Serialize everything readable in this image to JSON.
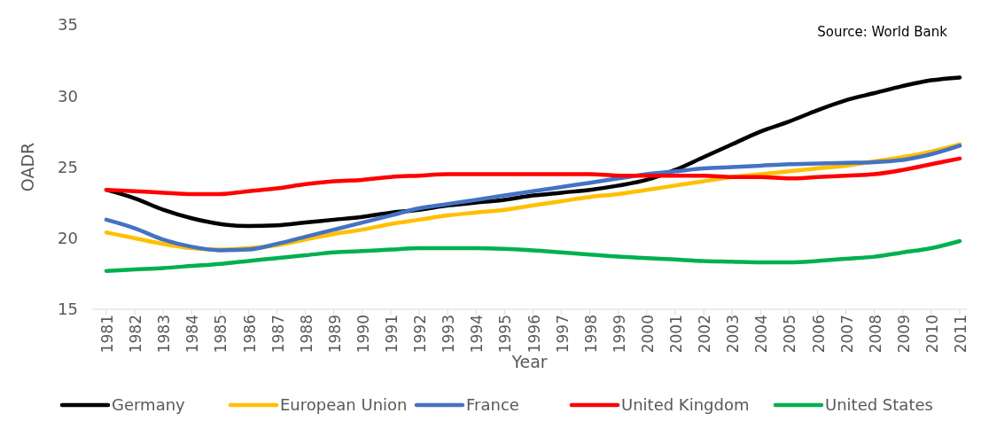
{
  "chart_data": {
    "type": "line",
    "xlabel": "Year",
    "ylabel": "OADR",
    "annotations": [
      "Source: World Bank"
    ],
    "categories": [
      "1981",
      "1982",
      "1983",
      "1984",
      "1985",
      "1986",
      "1987",
      "1988",
      "1989",
      "1990",
      "1991",
      "1992",
      "1993",
      "1994",
      "1995",
      "1996",
      "1997",
      "1998",
      "1999",
      "2000",
      "2001",
      "2002",
      "2003",
      "2004",
      "2005",
      "2006",
      "2007",
      "2008",
      "2009",
      "2010",
      "2011"
    ],
    "ylim": [
      15,
      35
    ],
    "yticks": [
      15,
      20,
      25,
      30,
      35
    ],
    "grid": false,
    "legend": "bottom",
    "marker": "none",
    "line_style": "solid",
    "series": [
      {
        "name": "Germany",
        "color": "#000000",
        "values": [
          23.4,
          22.8,
          22.0,
          21.4,
          21.0,
          20.85,
          20.9,
          21.1,
          21.3,
          21.5,
          21.8,
          22.0,
          22.3,
          22.5,
          22.7,
          23.0,
          23.2,
          23.4,
          23.7,
          24.1,
          24.8,
          25.7,
          26.6,
          27.5,
          28.2,
          29.0,
          29.7,
          30.2,
          30.7,
          31.1,
          31.3
        ]
      },
      {
        "name": "European Union",
        "color": "#ffc000",
        "values": [
          20.4,
          20.0,
          19.6,
          19.3,
          19.2,
          19.3,
          19.5,
          19.9,
          20.3,
          20.6,
          21.0,
          21.3,
          21.6,
          21.8,
          22.0,
          22.3,
          22.6,
          22.9,
          23.1,
          23.4,
          23.7,
          24.0,
          24.3,
          24.5,
          24.7,
          24.9,
          25.1,
          25.4,
          25.7,
          26.1,
          26.6
        ]
      },
      {
        "name": "France",
        "color": "#4472c4",
        "values": [
          21.3,
          20.7,
          19.9,
          19.4,
          19.15,
          19.2,
          19.6,
          20.1,
          20.6,
          21.1,
          21.6,
          22.1,
          22.4,
          22.7,
          23.0,
          23.3,
          23.6,
          23.9,
          24.2,
          24.5,
          24.7,
          24.9,
          25.0,
          25.1,
          25.2,
          25.25,
          25.3,
          25.35,
          25.5,
          25.9,
          26.5
        ]
      },
      {
        "name": "United Kingdom",
        "color": "#ff0000",
        "values": [
          23.4,
          23.3,
          23.2,
          23.1,
          23.1,
          23.3,
          23.5,
          23.8,
          24.0,
          24.1,
          24.3,
          24.4,
          24.5,
          24.5,
          24.5,
          24.5,
          24.5,
          24.5,
          24.4,
          24.4,
          24.4,
          24.4,
          24.3,
          24.3,
          24.2,
          24.3,
          24.4,
          24.5,
          24.8,
          25.2,
          25.6
        ]
      },
      {
        "name": "United States",
        "color": "#00b050",
        "values": [
          17.7,
          17.8,
          17.9,
          18.05,
          18.2,
          18.4,
          18.6,
          18.8,
          19.0,
          19.1,
          19.2,
          19.3,
          19.3,
          19.3,
          19.25,
          19.15,
          19.0,
          18.85,
          18.7,
          18.6,
          18.5,
          18.4,
          18.35,
          18.3,
          18.3,
          18.4,
          18.55,
          18.7,
          19.0,
          19.3,
          19.8
        ]
      }
    ]
  }
}
